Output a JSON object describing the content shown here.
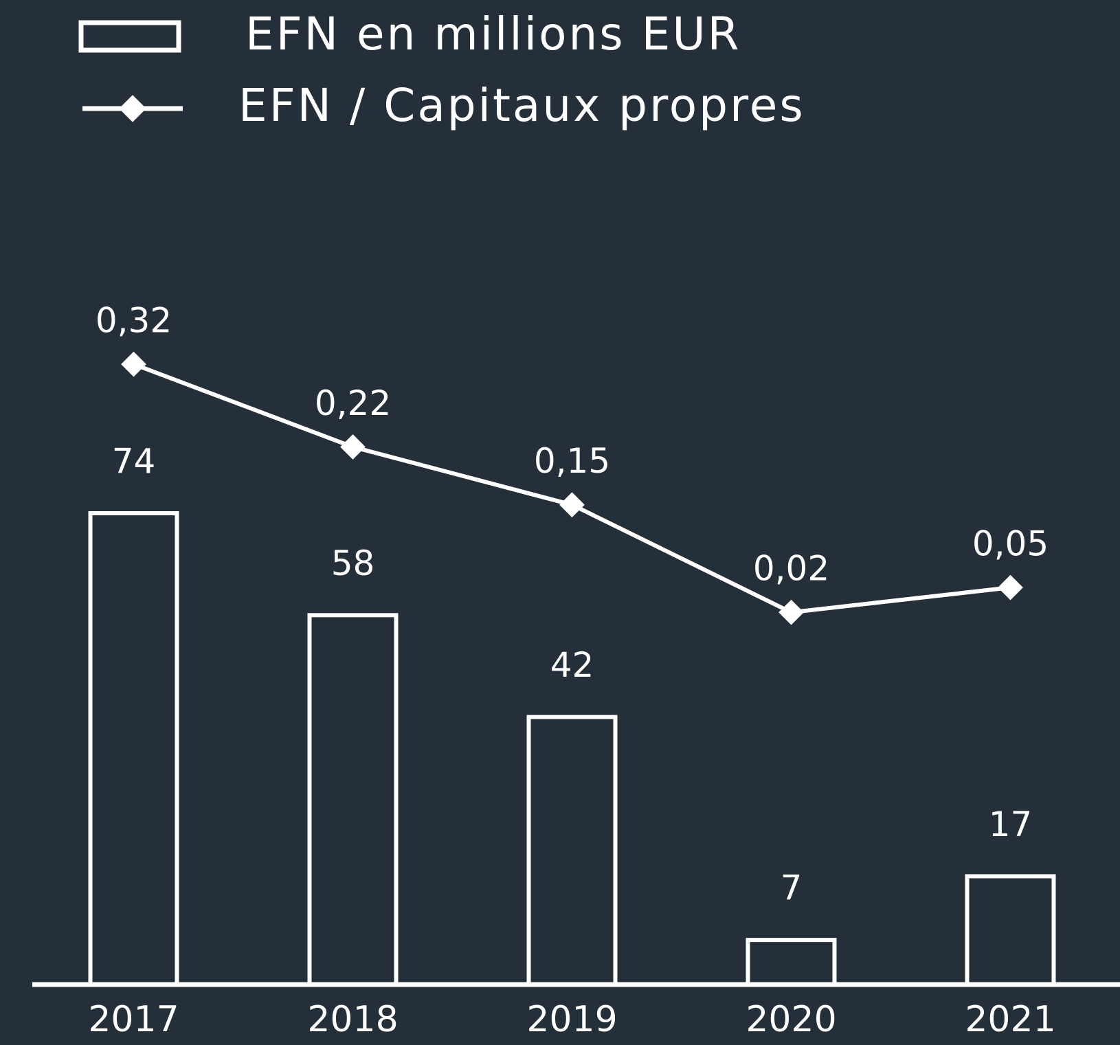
{
  "chart_data": {
    "type": "bar",
    "categories": [
      "2017",
      "2018",
      "2019",
      "2020",
      "2021"
    ],
    "series": [
      {
        "name": "EFN en millions EUR",
        "type": "bar",
        "color": "#ffffff",
        "values": [
          74,
          58,
          42,
          7,
          17
        ]
      },
      {
        "name": "EFN / Capitaux propres",
        "type": "line",
        "axis": "y2",
        "color": "#ffffff",
        "values": [
          0.32,
          0.22,
          0.15,
          0.02,
          0.05
        ],
        "value_labels": [
          "0,32",
          "0,22",
          "0,15",
          "0,02",
          "0,05"
        ]
      }
    ],
    "ylim": [
      0,
      100
    ],
    "y2lim": [
      -0.43,
      0.34
    ],
    "background": "#252f3a"
  }
}
